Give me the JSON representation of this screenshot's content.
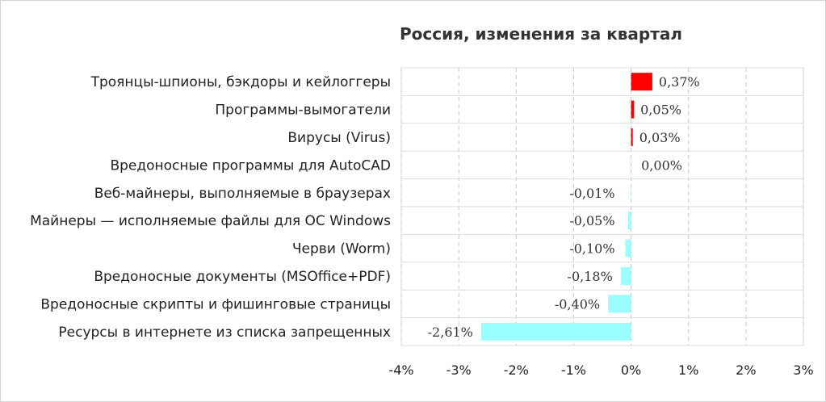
{
  "chart_data": {
    "type": "bar",
    "orientation": "horizontal",
    "title": "Россия, изменения за квартал",
    "xlim": [
      -4,
      3
    ],
    "x_ticks": [
      "-4%",
      "-3%",
      "-2%",
      "-1%",
      "0%",
      "1%",
      "2%",
      "3%"
    ],
    "grid": "vertical dashed",
    "categories": [
      "Троянцы-шпионы, бэкдоры и кейлоггеры",
      "Программы-вымогатели",
      "Вирусы (Virus)",
      "Вредоносные программы для AutoCAD",
      "Веб-майнеры, выполняемые в браузерах",
      "Майнеры — исполняемые файлы для ОС Windows",
      "Черви (Worm)",
      "Вредоносные документы (MSOffice+PDF)",
      "Вредоносные скрипты и фишинговые страницы",
      "Ресурсы в интернете из списка запрещенных"
    ],
    "values": [
      0.37,
      0.05,
      0.03,
      0.0,
      -0.01,
      -0.05,
      -0.1,
      -0.18,
      -0.4,
      -2.61
    ],
    "data_labels": [
      "0,37%",
      "0,05%",
      "0,03%",
      "0,00%",
      "-0,01%",
      "-0,05%",
      "-0,10%",
      "-0,18%",
      "-0,40%",
      "-2,61%"
    ],
    "colors": {
      "positive": "#ff0000",
      "negative": "#99ffff",
      "grid": "#c8c8c8",
      "border": "#d9d9d9"
    }
  }
}
